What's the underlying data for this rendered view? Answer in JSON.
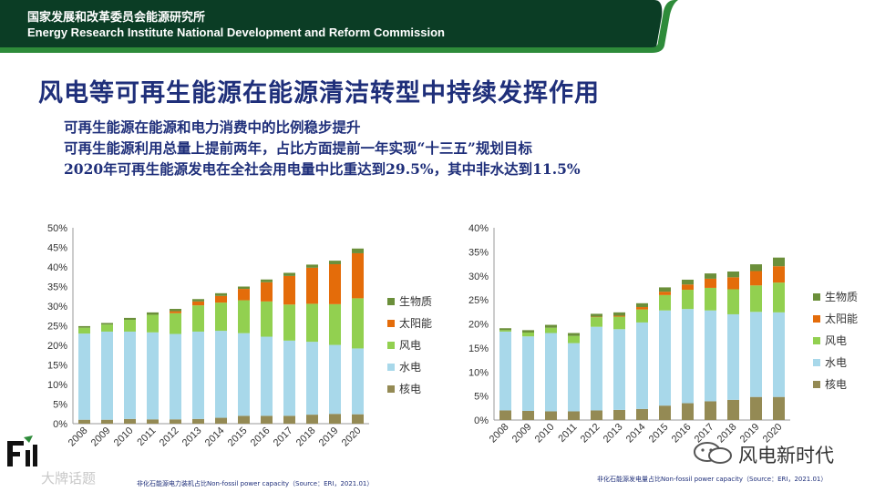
{
  "header": {
    "org_cn": "国家发展和改革委员会能源研究所",
    "org_en": "Energy Research Institute National Development and Reform Commission",
    "bar_color": "#0b3d25",
    "accent_color": "#2e8b3a"
  },
  "title": "风电等可再生能源在能源清洁转型中持续发挥作用",
  "bullets": [
    "可再生能源在能源和电力消费中的比例稳步提升",
    "可再生能源利用总量上提前两年，占比方面提前一年实现“十三五”规划目标",
    "2020年可再生能源发电在全社会用电量中比重达到29.5%，其中非水达到11.5%"
  ],
  "colors": {
    "生物质": "#6b8f3a",
    "太阳能": "#e46c0a",
    "风电": "#92d050",
    "水电": "#a8d8ea",
    "核电": "#948a54"
  },
  "chart_data": [
    {
      "type": "bar",
      "stacked": true,
      "title": "",
      "source": "非化石能源电力装机占比Non-fossil power capacity（Source：ERI，2021.01）",
      "categories": [
        "2008",
        "2009",
        "2010",
        "2011",
        "2012",
        "2013",
        "2014",
        "2015",
        "2016",
        "2017",
        "2018",
        "2019",
        "2020"
      ],
      "ylim": [
        0,
        50
      ],
      "yticks": [
        "0%",
        "5%",
        "10%",
        "15%",
        "20%",
        "25%",
        "30%",
        "35%",
        "40%",
        "45%",
        "50%"
      ],
      "legend": [
        "生物质",
        "太阳能",
        "风电",
        "水电",
        "核电"
      ],
      "series": [
        {
          "name": "核电",
          "values": [
            1.0,
            1.0,
            1.2,
            1.1,
            1.1,
            1.2,
            1.5,
            2.0,
            2.0,
            2.0,
            2.3,
            2.5,
            2.4
          ]
        },
        {
          "name": "水电",
          "values": [
            22.0,
            22.5,
            22.3,
            22.2,
            21.8,
            22.3,
            22.2,
            21.1,
            20.2,
            19.2,
            18.6,
            17.6,
            16.8
          ]
        },
        {
          "name": "风电",
          "values": [
            1.5,
            1.8,
            3.0,
            4.5,
            5.3,
            6.7,
            7.2,
            8.4,
            9.0,
            9.2,
            9.7,
            10.4,
            12.8
          ]
        },
        {
          "name": "太阳能",
          "values": [
            0,
            0,
            0,
            0,
            0.5,
            1.0,
            1.7,
            2.9,
            4.9,
            7.3,
            9.2,
            10.2,
            11.5
          ]
        },
        {
          "name": "生物质",
          "values": [
            0.4,
            0.4,
            0.5,
            0.6,
            0.6,
            0.6,
            0.7,
            0.6,
            0.7,
            0.8,
            0.8,
            0.9,
            1.2
          ]
        }
      ]
    },
    {
      "type": "bar",
      "stacked": true,
      "title": "",
      "source": "非化石能源发电量占比Non-fossil power capacity（Source：ERI，2021.01）",
      "categories": [
        "2008",
        "2009",
        "2010",
        "2011",
        "2012",
        "2013",
        "2014",
        "2015",
        "2016",
        "2017",
        "2018",
        "2019",
        "2020"
      ],
      "ylim": [
        0,
        40
      ],
      "yticks": [
        "0%",
        "5%",
        "10%",
        "15%",
        "20%",
        "25%",
        "30%",
        "35%",
        "40%"
      ],
      "legend": [
        "生物质",
        "太阳能",
        "风电",
        "水电",
        "核电"
      ],
      "series": [
        {
          "name": "核电",
          "values": [
            2.0,
            1.9,
            1.8,
            1.8,
            2.0,
            2.1,
            2.3,
            3.0,
            3.5,
            3.9,
            4.2,
            4.8,
            4.8
          ]
        },
        {
          "name": "水电",
          "values": [
            16.4,
            15.5,
            16.3,
            14.2,
            17.4,
            16.8,
            18.0,
            19.8,
            19.6,
            18.9,
            17.8,
            17.7,
            17.6
          ]
        },
        {
          "name": "风电",
          "values": [
            0.3,
            0.8,
            1.1,
            1.5,
            2.0,
            2.6,
            2.7,
            3.2,
            4.0,
            4.7,
            5.2,
            5.5,
            6.2
          ]
        },
        {
          "name": "太阳能",
          "values": [
            0,
            0,
            0,
            0,
            0.1,
            0.2,
            0.5,
            0.7,
            1.1,
            1.9,
            2.5,
            3.0,
            3.4
          ]
        },
        {
          "name": "生物质",
          "values": [
            0.4,
            0.5,
            0.6,
            0.6,
            0.6,
            0.7,
            0.8,
            0.9,
            1.0,
            1.1,
            1.2,
            1.4,
            1.8
          ]
        }
      ]
    }
  ],
  "watermark": {
    "left": "大牌话题",
    "right": "风电新时代"
  }
}
